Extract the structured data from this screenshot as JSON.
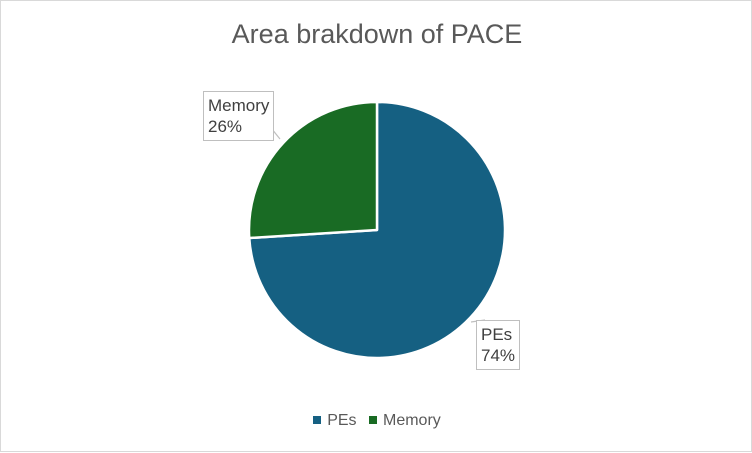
{
  "chart_data": {
    "type": "pie",
    "title": "Area brakdown of PACE",
    "slices": [
      {
        "name": "PEs",
        "value": 74,
        "label": "74%",
        "color": "#156082"
      },
      {
        "name": "Memory",
        "value": 26,
        "label": "26%",
        "color": "#196b24"
      }
    ],
    "legend": {
      "placement": "bottom",
      "items": [
        {
          "name": "PEs",
          "color": "#156082"
        },
        {
          "name": "Memory",
          "color": "#196b24"
        }
      ]
    }
  }
}
